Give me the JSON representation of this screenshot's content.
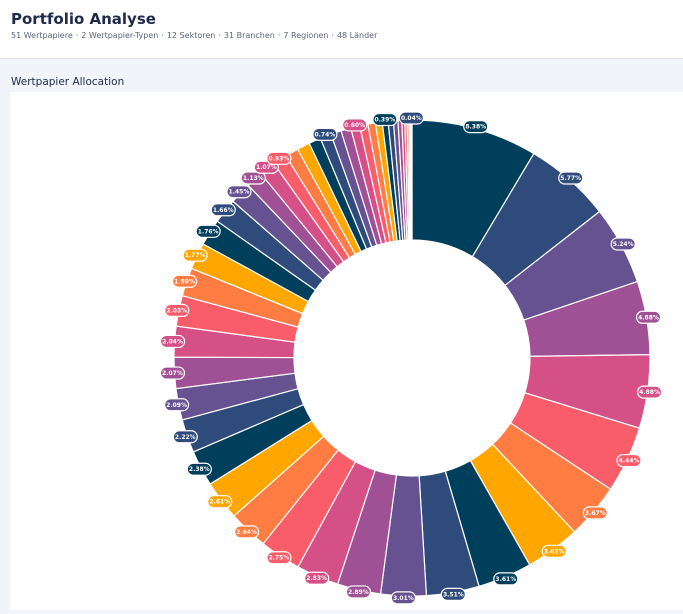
{
  "header": {
    "title": "Portfolio Analyse",
    "stats": [
      "51 Wertpapiere",
      "2 Wertpapier-Typen",
      "12 Sektoren",
      "31 Branchen",
      "7 Regionen",
      "48 Länder"
    ]
  },
  "chart_data": {
    "type": "donut",
    "title": "Wertpapier Allocation",
    "values": [
      8.38,
      5.77,
      5.24,
      4.88,
      4.88,
      4.44,
      3.67,
      3.65,
      3.61,
      3.51,
      3.01,
      2.89,
      2.83,
      2.75,
      2.64,
      2.61,
      2.38,
      2.22,
      2.09,
      2.07,
      2.04,
      2.03,
      1.89,
      1.77,
      1.76,
      1.66,
      1.45,
      1.13,
      1.07,
      0.93,
      0.89,
      0.85,
      0.8,
      0.74,
      0.7,
      0.66,
      0.6,
      0.55,
      0.5,
      0.45,
      0.39,
      0.35,
      0.3,
      0.25,
      0.2,
      0.15,
      0.12,
      0.08,
      0.06,
      0.04,
      0.02
    ],
    "value_labels": [
      "8.38%",
      "5.77%",
      "5.24%",
      "4.88%",
      "4.88%",
      "4.44%",
      "3.67%",
      "3.65%",
      "3.61%",
      "3.51%",
      "3.01%",
      "2.89%",
      "2.83%",
      "2.75%",
      "2.64%",
      "2.61%",
      "2.38%",
      "2.22%",
      "2.09%",
      "2.07%",
      "2.04%",
      "2.03%",
      "1.89%",
      "1.77%",
      "1.76%",
      "1.66%",
      "1.45%",
      "1.13%",
      "1.07%",
      "0.93%",
      null,
      null,
      null,
      "0.74%",
      null,
      null,
      "0.60%",
      null,
      null,
      null,
      "0.39%",
      null,
      null,
      null,
      null,
      null,
      null,
      null,
      null,
      "0.04%",
      null
    ],
    "colors": [
      "#003f5c",
      "#2f4b7c",
      "#665191",
      "#a05195",
      "#d45087",
      "#f95d6a",
      "#ff7c43",
      "#ffa600"
    ]
  }
}
